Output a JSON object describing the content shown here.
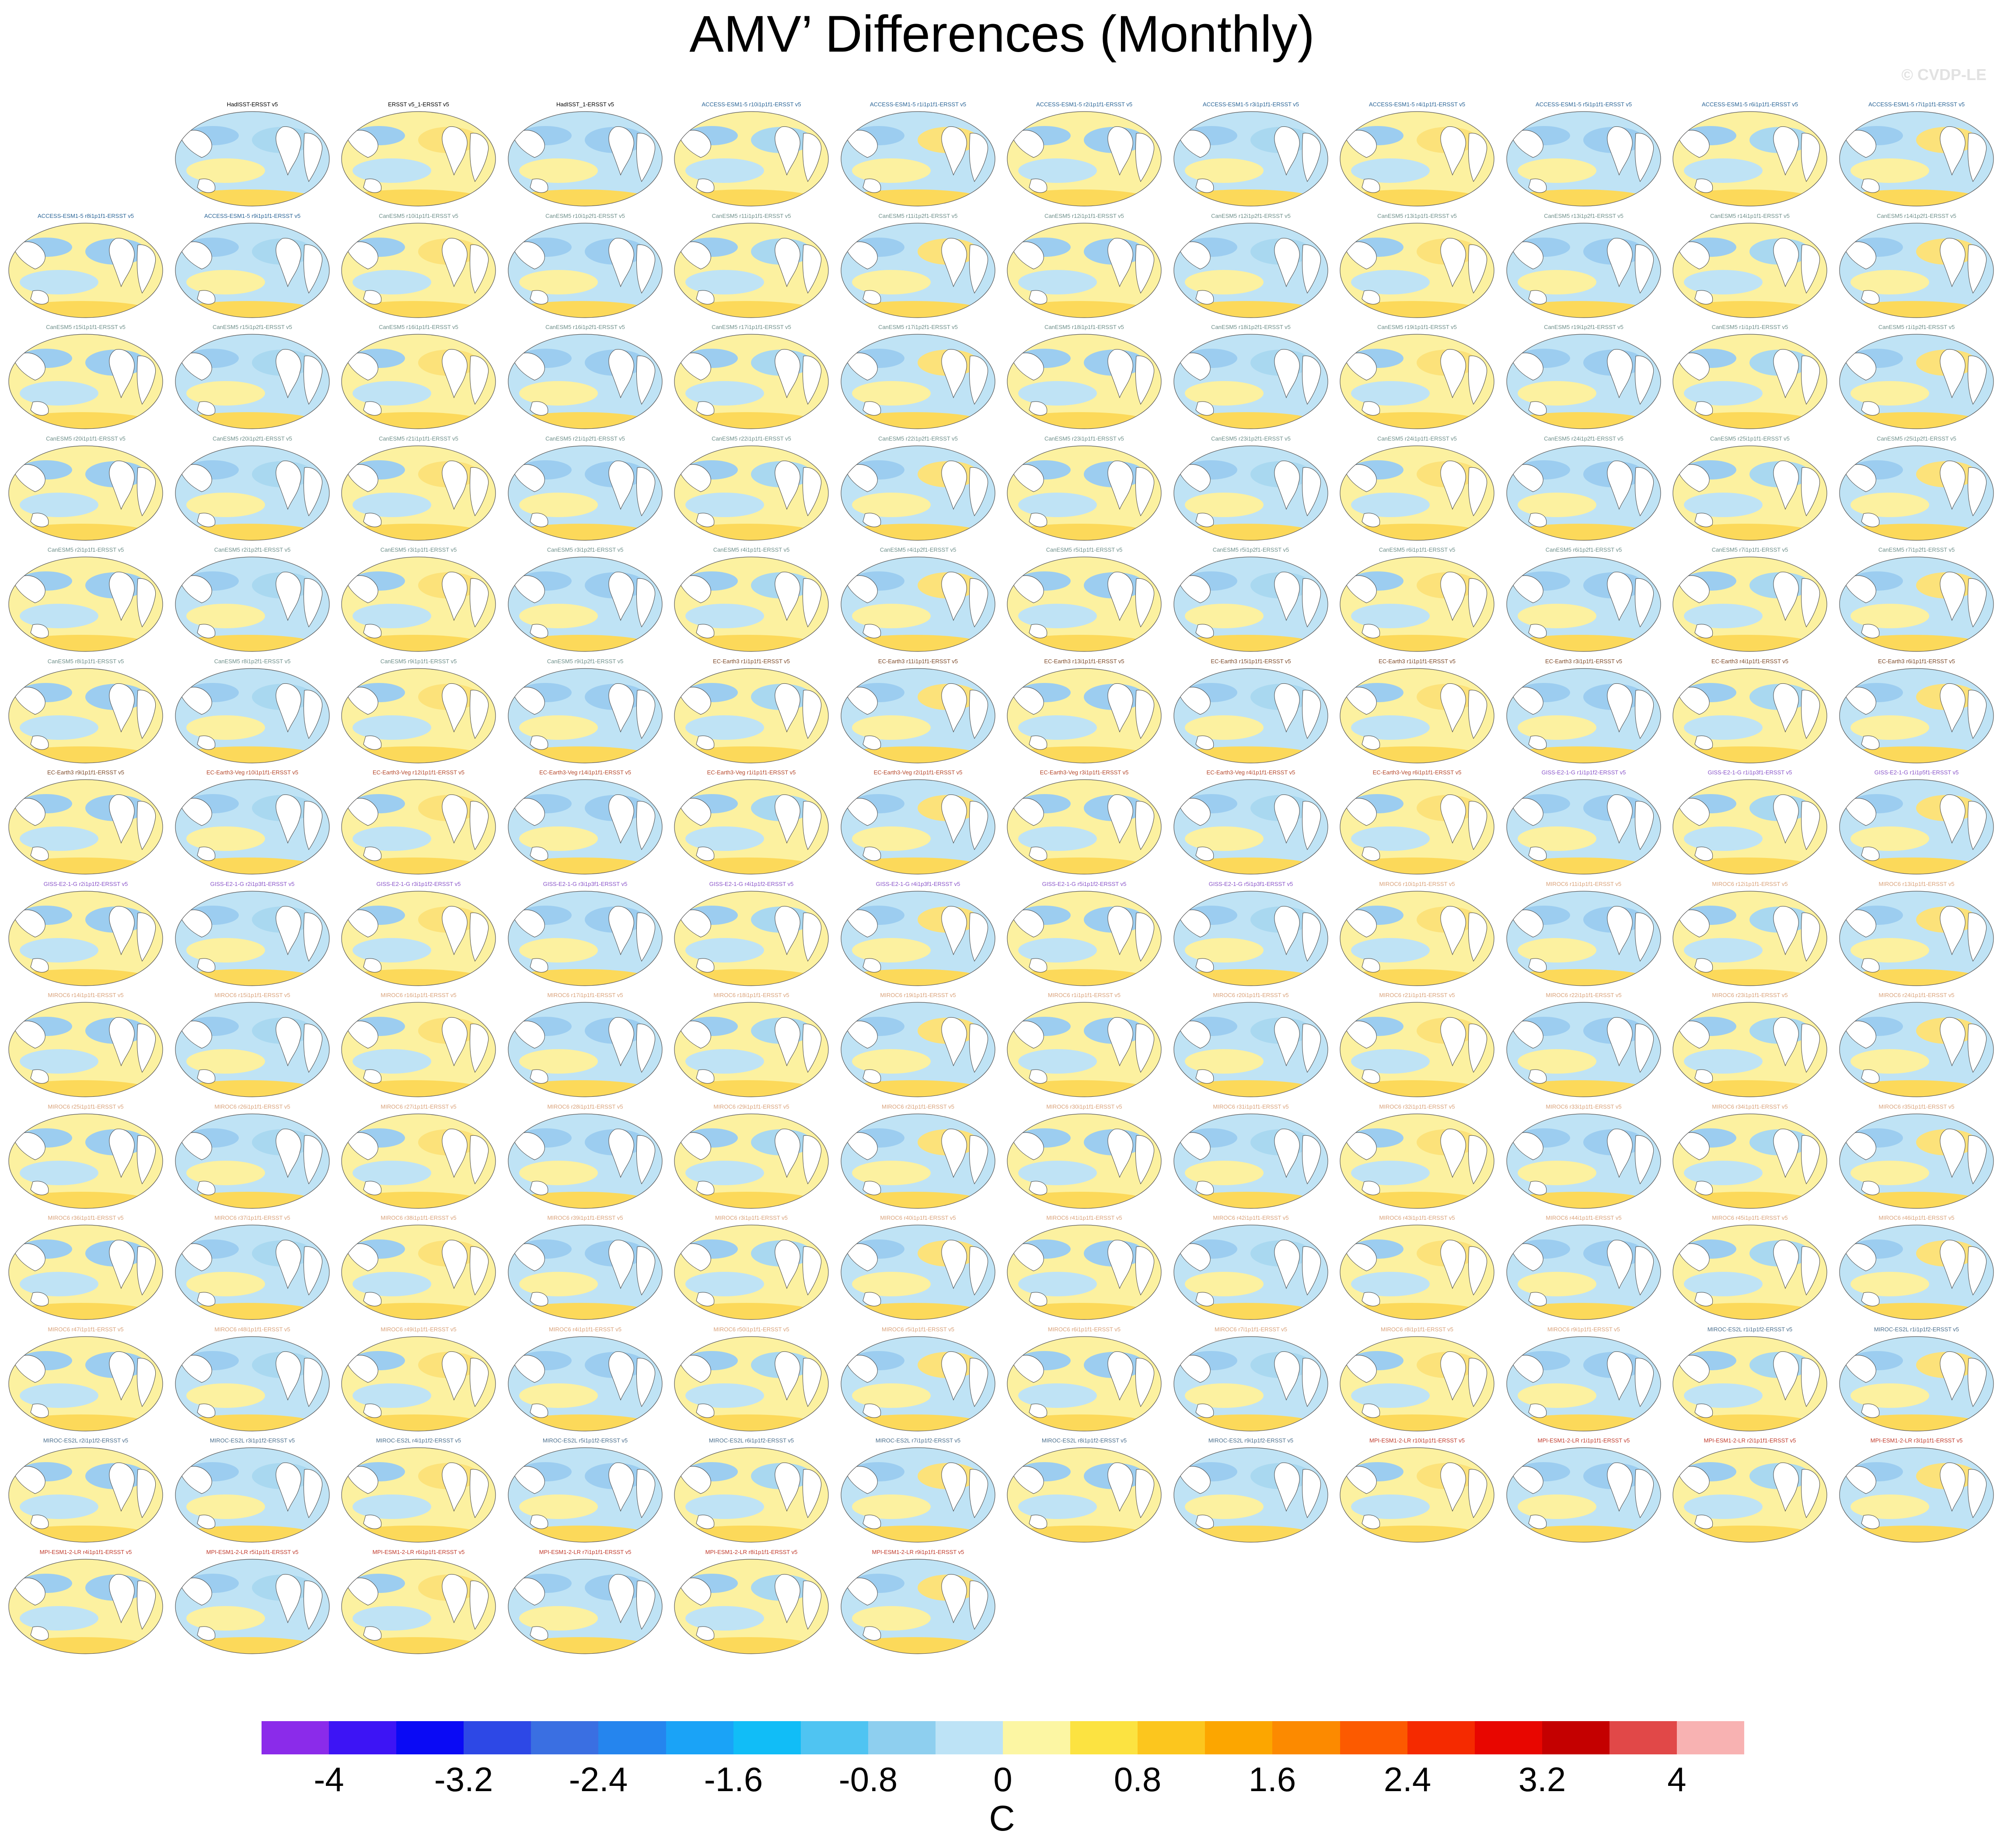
{
  "title": "AMV’ Differences (Monthly)",
  "watermark": "© CVDP-LE",
  "colors": {
    "obs": "#000000",
    "ACCESS": "#2A6496",
    "CanESM5": "#6E8F8A",
    "EC": "#7D4A2A",
    "ECVeg": "#B5472B",
    "GISS": "#8A55C9",
    "MIROC6": "#D9A27A",
    "MIROCE": "#4A6E8C",
    "MPI": "#C0392B"
  },
  "panels": [
    {
      "label": "HadISST-ERSST v5",
      "group": "obs"
    },
    {
      "label": "ERSST v5_1-ERSST v5",
      "group": "obs"
    },
    {
      "label": "HadISST_1-ERSST v5",
      "group": "obs"
    },
    {
      "label": "ACCESS-ESM1-5 r10i1p1f1-ERSST v5",
      "group": "ACCESS"
    },
    {
      "label": "ACCESS-ESM1-5 r1i1p1f1-ERSST v5",
      "group": "ACCESS"
    },
    {
      "label": "ACCESS-ESM1-5 r2i1p1f1-ERSST v5",
      "group": "ACCESS"
    },
    {
      "label": "ACCESS-ESM1-5 r3i1p1f1-ERSST v5",
      "group": "ACCESS"
    },
    {
      "label": "ACCESS-ESM1-5 r4i1p1f1-ERSST v5",
      "group": "ACCESS"
    },
    {
      "label": "ACCESS-ESM1-5 r5i1p1f1-ERSST v5",
      "group": "ACCESS"
    },
    {
      "label": "ACCESS-ESM1-5 r6i1p1f1-ERSST v5",
      "group": "ACCESS"
    },
    {
      "label": "ACCESS-ESM1-5 r7i1p1f1-ERSST v5",
      "group": "ACCESS"
    },
    {
      "label": "ACCESS-ESM1-5 r8i1p1f1-ERSST v5",
      "group": "ACCESS"
    },
    {
      "label": "ACCESS-ESM1-5 r9i1p1f1-ERSST v5",
      "group": "ACCESS"
    },
    {
      "label": "CanESM5 r10i1p1f1-ERSST v5",
      "group": "CanESM5"
    },
    {
      "label": "CanESM5 r10i1p2f1-ERSST v5",
      "group": "CanESM5"
    },
    {
      "label": "CanESM5 r11i1p1f1-ERSST v5",
      "group": "CanESM5"
    },
    {
      "label": "CanESM5 r11i1p2f1-ERSST v5",
      "group": "CanESM5"
    },
    {
      "label": "CanESM5 r12i1p1f1-ERSST v5",
      "group": "CanESM5"
    },
    {
      "label": "CanESM5 r12i1p2f1-ERSST v5",
      "group": "CanESM5"
    },
    {
      "label": "CanESM5 r13i1p1f1-ERSST v5",
      "group": "CanESM5"
    },
    {
      "label": "CanESM5 r13i1p2f1-ERSST v5",
      "group": "CanESM5"
    },
    {
      "label": "CanESM5 r14i1p1f1-ERSST v5",
      "group": "CanESM5"
    },
    {
      "label": "CanESM5 r14i1p2f1-ERSST v5",
      "group": "CanESM5"
    },
    {
      "label": "CanESM5 r15i1p1f1-ERSST v5",
      "group": "CanESM5"
    },
    {
      "label": "CanESM5 r15i1p2f1-ERSST v5",
      "group": "CanESM5"
    },
    {
      "label": "CanESM5 r16i1p1f1-ERSST v5",
      "group": "CanESM5"
    },
    {
      "label": "CanESM5 r16i1p2f1-ERSST v5",
      "group": "CanESM5"
    },
    {
      "label": "CanESM5 r17i1p1f1-ERSST v5",
      "group": "CanESM5"
    },
    {
      "label": "CanESM5 r17i1p2f1-ERSST v5",
      "group": "CanESM5"
    },
    {
      "label": "CanESM5 r18i1p1f1-ERSST v5",
      "group": "CanESM5"
    },
    {
      "label": "CanESM5 r18i1p2f1-ERSST v5",
      "group": "CanESM5"
    },
    {
      "label": "CanESM5 r19i1p1f1-ERSST v5",
      "group": "CanESM5"
    },
    {
      "label": "CanESM5 r19i1p2f1-ERSST v5",
      "group": "CanESM5"
    },
    {
      "label": "CanESM5 r1i1p1f1-ERSST v5",
      "group": "CanESM5"
    },
    {
      "label": "CanESM5 r1i1p2f1-ERSST v5",
      "group": "CanESM5"
    },
    {
      "label": "CanESM5 r20i1p1f1-ERSST v5",
      "group": "CanESM5"
    },
    {
      "label": "CanESM5 r20i1p2f1-ERSST v5",
      "group": "CanESM5"
    },
    {
      "label": "CanESM5 r21i1p1f1-ERSST v5",
      "group": "CanESM5"
    },
    {
      "label": "CanESM5 r21i1p2f1-ERSST v5",
      "group": "CanESM5"
    },
    {
      "label": "CanESM5 r22i1p1f1-ERSST v5",
      "group": "CanESM5"
    },
    {
      "label": "CanESM5 r22i1p2f1-ERSST v5",
      "group": "CanESM5"
    },
    {
      "label": "CanESM5 r23i1p1f1-ERSST v5",
      "group": "CanESM5"
    },
    {
      "label": "CanESM5 r23i1p2f1-ERSST v5",
      "group": "CanESM5"
    },
    {
      "label": "CanESM5 r24i1p1f1-ERSST v5",
      "group": "CanESM5"
    },
    {
      "label": "CanESM5 r24i1p2f1-ERSST v5",
      "group": "CanESM5"
    },
    {
      "label": "CanESM5 r25i1p1f1-ERSST v5",
      "group": "CanESM5"
    },
    {
      "label": "CanESM5 r25i1p2f1-ERSST v5",
      "group": "CanESM5"
    },
    {
      "label": "CanESM5 r2i1p1f1-ERSST v5",
      "group": "CanESM5"
    },
    {
      "label": "CanESM5 r2i1p2f1-ERSST v5",
      "group": "CanESM5"
    },
    {
      "label": "CanESM5 r3i1p1f1-ERSST v5",
      "group": "CanESM5"
    },
    {
      "label": "CanESM5 r3i1p2f1-ERSST v5",
      "group": "CanESM5"
    },
    {
      "label": "CanESM5 r4i1p1f1-ERSST v5",
      "group": "CanESM5"
    },
    {
      "label": "CanESM5 r4i1p2f1-ERSST v5",
      "group": "CanESM5"
    },
    {
      "label": "CanESM5 r5i1p1f1-ERSST v5",
      "group": "CanESM5"
    },
    {
      "label": "CanESM5 r5i1p2f1-ERSST v5",
      "group": "CanESM5"
    },
    {
      "label": "CanESM5 r6i1p1f1-ERSST v5",
      "group": "CanESM5"
    },
    {
      "label": "CanESM5 r6i1p2f1-ERSST v5",
      "group": "CanESM5"
    },
    {
      "label": "CanESM5 r7i1p1f1-ERSST v5",
      "group": "CanESM5"
    },
    {
      "label": "CanESM5 r7i1p2f1-ERSST v5",
      "group": "CanESM5"
    },
    {
      "label": "CanESM5 r8i1p1f1-ERSST v5",
      "group": "CanESM5"
    },
    {
      "label": "CanESM5 r8i1p2f1-ERSST v5",
      "group": "CanESM5"
    },
    {
      "label": "CanESM5 r9i1p1f1-ERSST v5",
      "group": "CanESM5"
    },
    {
      "label": "CanESM5 r9i1p2f1-ERSST v5",
      "group": "CanESM5"
    },
    {
      "label": "EC-Earth3 r1i1p1f1-ERSST v5",
      "group": "EC"
    },
    {
      "label": "EC-Earth3 r11i1p1f1-ERSST v5",
      "group": "EC"
    },
    {
      "label": "EC-Earth3 r13i1p1f1-ERSST v5",
      "group": "EC"
    },
    {
      "label": "EC-Earth3 r15i1p1f1-ERSST v5",
      "group": "EC"
    },
    {
      "label": "EC-Earth3 r1i1p1f1-ERSST v5",
      "group": "EC"
    },
    {
      "label": "EC-Earth3 r3i1p1f1-ERSST v5",
      "group": "EC"
    },
    {
      "label": "EC-Earth3 r4i1p1f1-ERSST v5",
      "group": "EC"
    },
    {
      "label": "EC-Earth3 r6i1p1f1-ERSST v5",
      "group": "EC"
    },
    {
      "label": "EC-Earth3 r9i1p1f1-ERSST v5",
      "group": "EC"
    },
    {
      "label": "EC-Earth3-Veg r10i1p1f1-ERSST v5",
      "group": "ECVeg"
    },
    {
      "label": "EC-Earth3-Veg r12i1p1f1-ERSST v5",
      "group": "ECVeg"
    },
    {
      "label": "EC-Earth3-Veg r14i1p1f1-ERSST v5",
      "group": "ECVeg"
    },
    {
      "label": "EC-Earth3-Veg r1i1p1f1-ERSST v5",
      "group": "ECVeg"
    },
    {
      "label": "EC-Earth3-Veg r2i1p1f1-ERSST v5",
      "group": "ECVeg"
    },
    {
      "label": "EC-Earth3-Veg r3i1p1f1-ERSST v5",
      "group": "ECVeg"
    },
    {
      "label": "EC-Earth3-Veg r4i1p1f1-ERSST v5",
      "group": "ECVeg"
    },
    {
      "label": "EC-Earth3-Veg r6i1p1f1-ERSST v5",
      "group": "ECVeg"
    },
    {
      "label": "GISS-E2-1-G r1i1p1f2-ERSST v5",
      "group": "GISS"
    },
    {
      "label": "GISS-E2-1-G r1i1p3f1-ERSST v5",
      "group": "GISS"
    },
    {
      "label": "GISS-E2-1-G r1i1p5f1-ERSST v5",
      "group": "GISS"
    },
    {
      "label": "GISS-E2-1-G r2i1p1f2-ERSST v5",
      "group": "GISS"
    },
    {
      "label": "GISS-E2-1-G r2i1p3f1-ERSST v5",
      "group": "GISS"
    },
    {
      "label": "GISS-E2-1-G r3i1p1f2-ERSST v5",
      "group": "GISS"
    },
    {
      "label": "GISS-E2-1-G r3i1p3f1-ERSST v5",
      "group": "GISS"
    },
    {
      "label": "GISS-E2-1-G r4i1p1f2-ERSST v5",
      "group": "GISS"
    },
    {
      "label": "GISS-E2-1-G r4i1p3f1-ERSST v5",
      "group": "GISS"
    },
    {
      "label": "GISS-E2-1-G r5i1p1f2-ERSST v5",
      "group": "GISS"
    },
    {
      "label": "GISS-E2-1-G r5i1p3f1-ERSST v5",
      "group": "GISS"
    },
    {
      "label": "MIROC6 r10i1p1f1-ERSST v5",
      "group": "MIROC6"
    },
    {
      "label": "MIROC6 r11i1p1f1-ERSST v5",
      "group": "MIROC6"
    },
    {
      "label": "MIROC6 r12i1p1f1-ERSST v5",
      "group": "MIROC6"
    },
    {
      "label": "MIROC6 r13i1p1f1-ERSST v5",
      "group": "MIROC6"
    },
    {
      "label": "MIROC6 r14i1p1f1-ERSST v5",
      "group": "MIROC6"
    },
    {
      "label": "MIROC6 r15i1p1f1-ERSST v5",
      "group": "MIROC6"
    },
    {
      "label": "MIROC6 r16i1p1f1-ERSST v5",
      "group": "MIROC6"
    },
    {
      "label": "MIROC6 r17i1p1f1-ERSST v5",
      "group": "MIROC6"
    },
    {
      "label": "MIROC6 r18i1p1f1-ERSST v5",
      "group": "MIROC6"
    },
    {
      "label": "MIROC6 r19i1p1f1-ERSST v5",
      "group": "MIROC6"
    },
    {
      "label": "MIROC6 r1i1p1f1-ERSST v5",
      "group": "MIROC6"
    },
    {
      "label": "MIROC6 r20i1p1f1-ERSST v5",
      "group": "MIROC6"
    },
    {
      "label": "MIROC6 r21i1p1f1-ERSST v5",
      "group": "MIROC6"
    },
    {
      "label": "MIROC6 r22i1p1f1-ERSST v5",
      "group": "MIROC6"
    },
    {
      "label": "MIROC6 r23i1p1f1-ERSST v5",
      "group": "MIROC6"
    },
    {
      "label": "MIROC6 r24i1p1f1-ERSST v5",
      "group": "MIROC6"
    },
    {
      "label": "MIROC6 r25i1p1f1-ERSST v5",
      "group": "MIROC6"
    },
    {
      "label": "MIROC6 r26i1p1f1-ERSST v5",
      "group": "MIROC6"
    },
    {
      "label": "MIROC6 r27i1p1f1-ERSST v5",
      "group": "MIROC6"
    },
    {
      "label": "MIROC6 r28i1p1f1-ERSST v5",
      "group": "MIROC6"
    },
    {
      "label": "MIROC6 r29i1p1f1-ERSST v5",
      "group": "MIROC6"
    },
    {
      "label": "MIROC6 r2i1p1f1-ERSST v5",
      "group": "MIROC6"
    },
    {
      "label": "MIROC6 r30i1p1f1-ERSST v5",
      "group": "MIROC6"
    },
    {
      "label": "MIROC6 r31i1p1f1-ERSST v5",
      "group": "MIROC6"
    },
    {
      "label": "MIROC6 r32i1p1f1-ERSST v5",
      "group": "MIROC6"
    },
    {
      "label": "MIROC6 r33i1p1f1-ERSST v5",
      "group": "MIROC6"
    },
    {
      "label": "MIROC6 r34i1p1f1-ERSST v5",
      "group": "MIROC6"
    },
    {
      "label": "MIROC6 r35i1p1f1-ERSST v5",
      "group": "MIROC6"
    },
    {
      "label": "MIROC6 r36i1p1f1-ERSST v5",
      "group": "MIROC6"
    },
    {
      "label": "MIROC6 r37i1p1f1-ERSST v5",
      "group": "MIROC6"
    },
    {
      "label": "MIROC6 r38i1p1f1-ERSST v5",
      "group": "MIROC6"
    },
    {
      "label": "MIROC6 r39i1p1f1-ERSST v5",
      "group": "MIROC6"
    },
    {
      "label": "MIROC6 r3i1p1f1-ERSST v5",
      "group": "MIROC6"
    },
    {
      "label": "MIROC6 r40i1p1f1-ERSST v5",
      "group": "MIROC6"
    },
    {
      "label": "MIROC6 r41i1p1f1-ERSST v5",
      "group": "MIROC6"
    },
    {
      "label": "MIROC6 r42i1p1f1-ERSST v5",
      "group": "MIROC6"
    },
    {
      "label": "MIROC6 r43i1p1f1-ERSST v5",
      "group": "MIROC6"
    },
    {
      "label": "MIROC6 r44i1p1f1-ERSST v5",
      "group": "MIROC6"
    },
    {
      "label": "MIROC6 r45i1p1f1-ERSST v5",
      "group": "MIROC6"
    },
    {
      "label": "MIROC6 r46i1p1f1-ERSST v5",
      "group": "MIROC6"
    },
    {
      "label": "MIROC6 r47i1p1f1-ERSST v5",
      "group": "MIROC6"
    },
    {
      "label": "MIROC6 r48i1p1f1-ERSST v5",
      "group": "MIROC6"
    },
    {
      "label": "MIROC6 r49i1p1f1-ERSST v5",
      "group": "MIROC6"
    },
    {
      "label": "MIROC6 r4i1p1f1-ERSST v5",
      "group": "MIROC6"
    },
    {
      "label": "MIROC6 r50i1p1f1-ERSST v5",
      "group": "MIROC6"
    },
    {
      "label": "MIROC6 r5i1p1f1-ERSST v5",
      "group": "MIROC6"
    },
    {
      "label": "MIROC6 r6i1p1f1-ERSST v5",
      "group": "MIROC6"
    },
    {
      "label": "MIROC6 r7i1p1f1-ERSST v5",
      "group": "MIROC6"
    },
    {
      "label": "MIROC6 r8i1p1f1-ERSST v5",
      "group": "MIROC6"
    },
    {
      "label": "MIROC6 r9i1p1f1-ERSST v5",
      "group": "MIROC6"
    },
    {
      "label": "MIROC-ES2L r1i1p1f2-ERSST v5",
      "group": "MIROCE"
    },
    {
      "label": "MIROC-ES2L r1i1p1f2-ERSST v5",
      "group": "MIROCE"
    },
    {
      "label": "MIROC-ES2L r2i1p1f2-ERSST v5",
      "group": "MIROCE"
    },
    {
      "label": "MIROC-ES2L r3i1p1f2-ERSST v5",
      "group": "MIROCE"
    },
    {
      "label": "MIROC-ES2L r4i1p1f2-ERSST v5",
      "group": "MIROCE"
    },
    {
      "label": "MIROC-ES2L r5i1p1f2-ERSST v5",
      "group": "MIROCE"
    },
    {
      "label": "MIROC-ES2L r6i1p1f2-ERSST v5",
      "group": "MIROCE"
    },
    {
      "label": "MIROC-ES2L r7i1p1f2-ERSST v5",
      "group": "MIROCE"
    },
    {
      "label": "MIROC-ES2L r8i1p1f2-ERSST v5",
      "group": "MIROCE"
    },
    {
      "label": "MIROC-ES2L r9i1p1f2-ERSST v5",
      "group": "MIROCE"
    },
    {
      "label": "MPI-ESM1-2-LR r10i1p1f1-ERSST v5",
      "group": "MPI"
    },
    {
      "label": "MPI-ESM1-2-LR r1i1p1f1-ERSST v5",
      "group": "MPI"
    },
    {
      "label": "MPI-ESM1-2-LR r2i1p1f1-ERSST v5",
      "group": "MPI"
    },
    {
      "label": "MPI-ESM1-2-LR r3i1p1f1-ERSST v5",
      "group": "MPI"
    },
    {
      "label": "MPI-ESM1-2-LR r4i1p1f1-ERSST v5",
      "group": "MPI"
    },
    {
      "label": "MPI-ESM1-2-LR r5i1p1f1-ERSST v5",
      "group": "MPI"
    },
    {
      "label": "MPI-ESM1-2-LR r6i1p1f1-ERSST v5",
      "group": "MPI"
    },
    {
      "label": "MPI-ESM1-2-LR r7i1p1f1-ERSST v5",
      "group": "MPI"
    },
    {
      "label": "MPI-ESM1-2-LR r8i1p1f1-ERSST v5",
      "group": "MPI"
    },
    {
      "label": "MPI-ESM1-2-LR r9i1p1f1-ERSST v5",
      "group": "MPI"
    }
  ],
  "colorbar": {
    "units": "C",
    "tick_labels": [
      "-4",
      "-3.2",
      "-2.4",
      "-1.6",
      "-0.8",
      "0",
      "0.8",
      "1.6",
      "2.4",
      "3.2",
      "4"
    ],
    "colors": [
      "#8B2BEA",
      "#3D14F5",
      "#0A0AF5",
      "#2D48E6",
      "#3A6FE2",
      "#2585EE",
      "#1AA3F7",
      "#11BDF7",
      "#4FC4F2",
      "#8ECFEF",
      "#BDE3F6",
      "#FCF6A3",
      "#FCE341",
      "#FCC61E",
      "#FCA600",
      "#FC8A00",
      "#FC5A00",
      "#F52A00",
      "#E80600",
      "#C40000",
      "#E14848",
      "#F8B2B2"
    ]
  }
}
